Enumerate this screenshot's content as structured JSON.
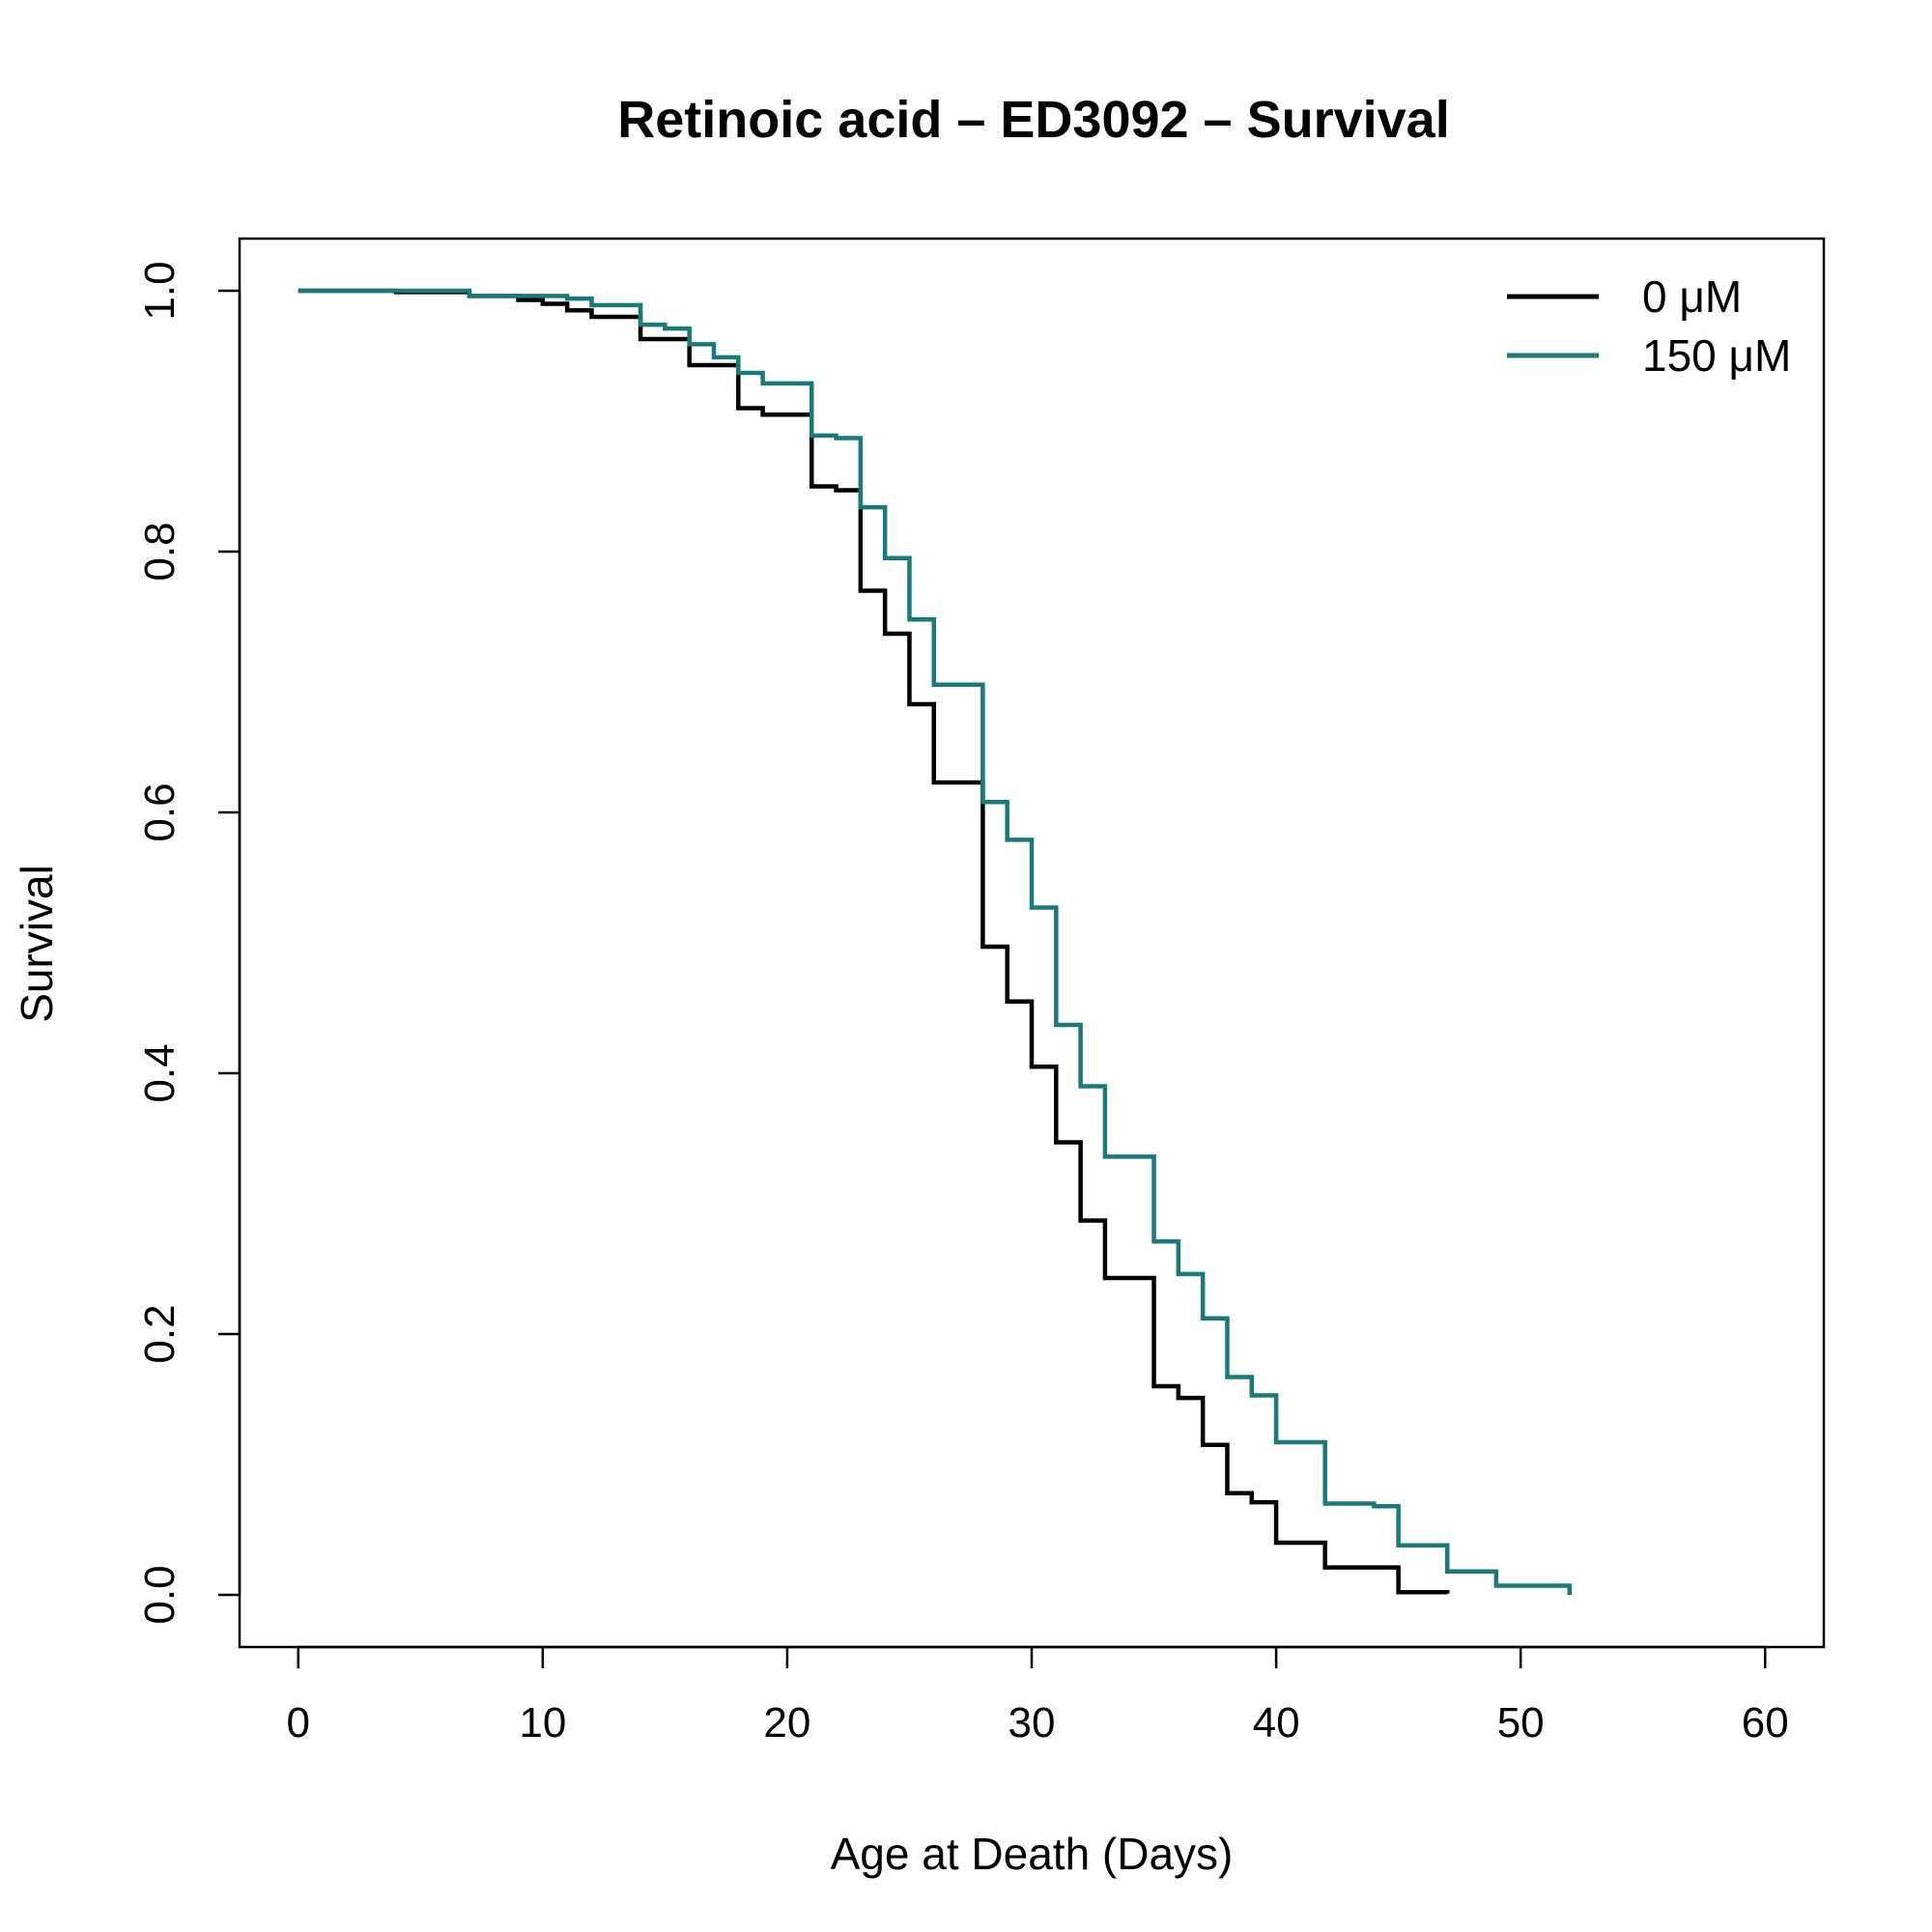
{
  "chart_data": {
    "type": "line",
    "subtype": "step",
    "title": "Retinoic acid – ED3092 – Survival",
    "xlabel": "Age at Death (Days)",
    "ylabel": "Survival",
    "xlim": [
      -2.4,
      62.4
    ],
    "ylim": [
      -0.04,
      1.04
    ],
    "xticks": [
      0,
      10,
      20,
      30,
      40,
      50,
      60
    ],
    "xtick_labels": [
      "0",
      "10",
      "20",
      "30",
      "40",
      "50",
      "60"
    ],
    "yticks": [
      0.0,
      0.2,
      0.4,
      0.6,
      0.8,
      1.0
    ],
    "ytick_labels": [
      "0.0",
      "0.2",
      "0.4",
      "0.6",
      "0.8",
      "1.0"
    ],
    "grid": false,
    "legend_position": "top-right",
    "series": [
      {
        "name": "0 μM",
        "color": "#000000",
        "x": [
          0,
          4,
          7,
          9,
          10,
          11,
          12,
          14,
          16,
          18,
          19,
          21,
          22,
          23,
          24,
          25,
          26,
          28,
          29,
          30,
          31,
          32,
          33,
          35,
          36,
          37,
          38,
          39,
          40,
          42,
          45,
          47
        ],
        "y": [
          1.0,
          0.999,
          0.996,
          0.993,
          0.99,
          0.985,
          0.98,
          0.963,
          0.943,
          0.91,
          0.905,
          0.85,
          0.847,
          0.77,
          0.737,
          0.683,
          0.623,
          0.497,
          0.455,
          0.405,
          0.347,
          0.287,
          0.243,
          0.16,
          0.151,
          0.115,
          0.078,
          0.071,
          0.04,
          0.021,
          0.002,
          0.001
        ]
      },
      {
        "name": "150 μM",
        "color": "#1a7a7a",
        "x": [
          0,
          7,
          11,
          12,
          14,
          15,
          16,
          17,
          18,
          19,
          21,
          22,
          23,
          24,
          25,
          26,
          28,
          29,
          30,
          31,
          32,
          33,
          35,
          36,
          37,
          38,
          39,
          40,
          42,
          44,
          45,
          47,
          49,
          52
        ],
        "y": [
          1.0,
          0.996,
          0.994,
          0.989,
          0.974,
          0.971,
          0.959,
          0.949,
          0.937,
          0.929,
          0.889,
          0.887,
          0.834,
          0.795,
          0.748,
          0.698,
          0.608,
          0.579,
          0.527,
          0.437,
          0.39,
          0.336,
          0.271,
          0.246,
          0.212,
          0.167,
          0.153,
          0.117,
          0.07,
          0.068,
          0.038,
          0.018,
          0.007,
          0.0
        ]
      }
    ]
  }
}
